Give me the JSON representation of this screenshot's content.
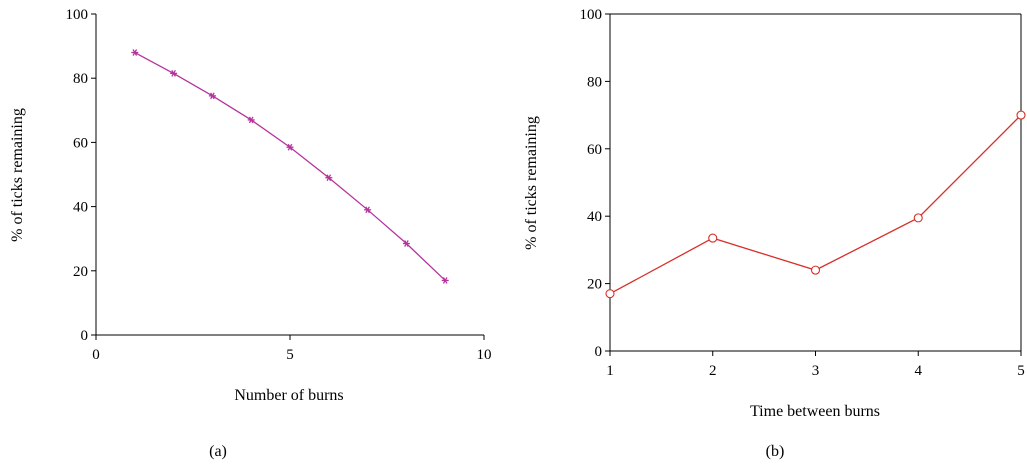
{
  "charts": [
    {
      "type": "line",
      "panel_label": "(a)",
      "xlabel": "Number of burns",
      "ylabel": "% of ticks remaining",
      "xlim": [
        0,
        10
      ],
      "ylim": [
        0,
        100
      ],
      "xticks": [
        0,
        5,
        10
      ],
      "yticks": [
        0,
        20,
        40,
        60,
        80,
        100
      ],
      "grid": false,
      "marker": "asterisk",
      "color": "#b5339b",
      "x": [
        1,
        2,
        3,
        4,
        5,
        6,
        7,
        8,
        9
      ],
      "y": [
        88,
        81.5,
        74.5,
        67,
        58.5,
        49,
        39,
        28.5,
        17
      ]
    },
    {
      "type": "line",
      "panel_label": "(b)",
      "xlabel": "Time between burns",
      "ylabel": "% of ticks remaining",
      "xlim": [
        1,
        5
      ],
      "ylim": [
        0,
        100
      ],
      "xticks": [
        1,
        2,
        3,
        4,
        5
      ],
      "yticks": [
        0,
        20,
        40,
        60,
        80,
        100
      ],
      "grid": false,
      "marker": "circle",
      "color": "#d7302a",
      "x": [
        1,
        2,
        3,
        4,
        5
      ],
      "y": [
        17,
        33.5,
        24,
        39.5,
        70
      ]
    }
  ]
}
